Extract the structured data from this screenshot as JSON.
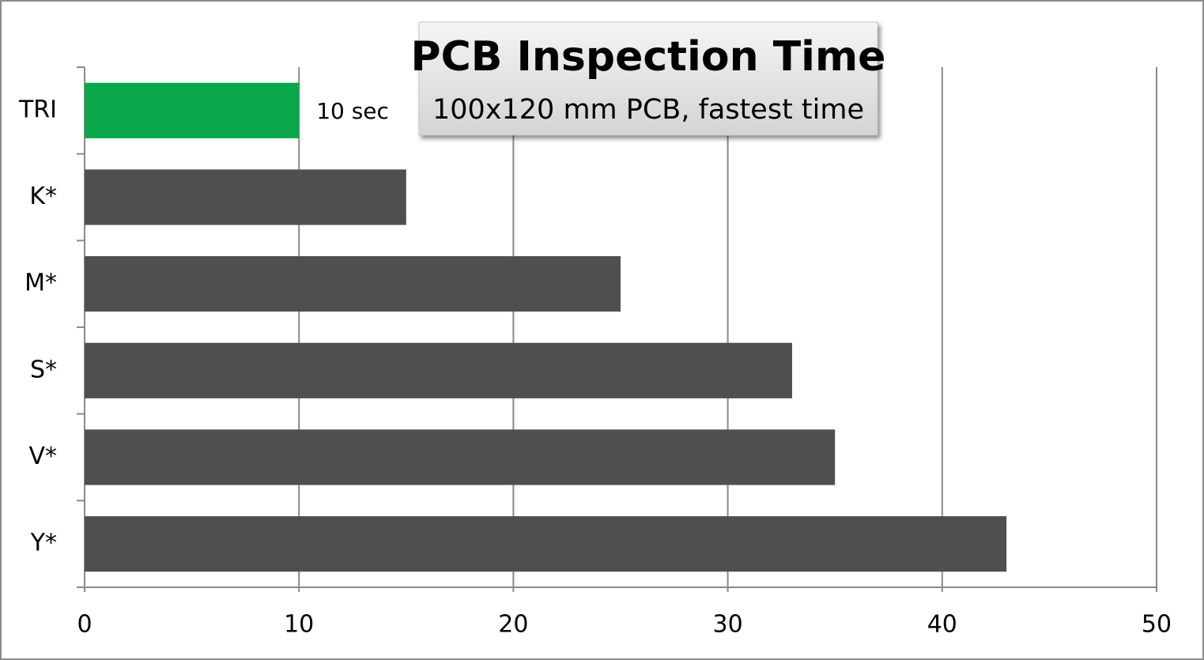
{
  "chart_data": {
    "type": "hbar",
    "title": "PCB Inspection Time",
    "subtitle": "100x120 mm PCB, fastest time",
    "categories": [
      "TRI",
      "K*",
      "M*",
      "S*",
      "V*",
      "Y*"
    ],
    "values": [
      10,
      15,
      25,
      33,
      35,
      43
    ],
    "value_labels": [
      "10 sec",
      null,
      null,
      null,
      null,
      null
    ],
    "colors": [
      "#0aa84a",
      "#4f4f4f",
      "#4f4f4f",
      "#4f4f4f",
      "#4f4f4f",
      "#4f4f4f"
    ],
    "xlim": [
      0,
      50
    ],
    "xticks": [
      0,
      10,
      20,
      30,
      40,
      50
    ],
    "grid": true
  }
}
